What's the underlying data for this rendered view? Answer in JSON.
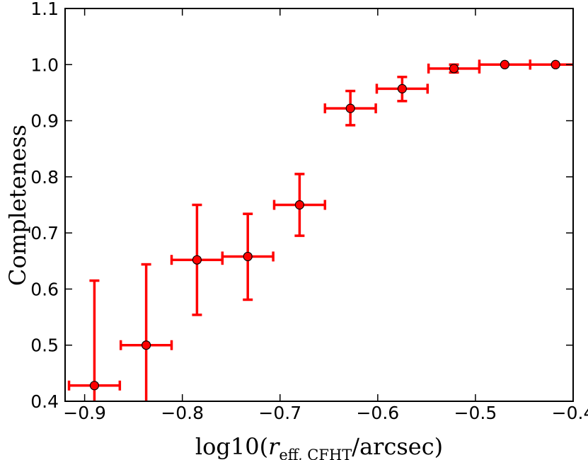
{
  "chart_data": {
    "type": "scatter",
    "title": "",
    "xlabel_prefix": "log10(",
    "xlabel_var": "r",
    "xlabel_subscript": "eff, CFHT",
    "xlabel_suffix": "/arcsec)",
    "ylabel": "Completeness",
    "xlim": [
      -0.92,
      -0.4
    ],
    "ylim": [
      0.4,
      1.1
    ],
    "xticks": [
      -0.9,
      -0.8,
      -0.7,
      -0.6,
      -0.5,
      -0.4
    ],
    "xtick_labels": [
      "−0.9",
      "−0.8",
      "−0.7",
      "−0.6",
      "−0.5",
      "−0.4"
    ],
    "yticks": [
      0.4,
      0.5,
      0.6,
      0.7,
      0.8,
      0.9,
      1.0,
      1.1
    ],
    "ytick_labels": [
      "0.4",
      "0.5",
      "0.6",
      "0.7",
      "0.8",
      "0.9",
      "1.0",
      "1.1"
    ],
    "grid": false,
    "legend": "none",
    "color": "#ff0000",
    "series": [
      {
        "name": "completeness",
        "points": [
          {
            "x": -0.89,
            "y": 0.428,
            "xerr": 0.026,
            "yerr_low": 0.05,
            "yerr_high": 0.187
          },
          {
            "x": -0.837,
            "y": 0.5,
            "xerr": 0.026,
            "yerr_low": 0.11,
            "yerr_high": 0.144
          },
          {
            "x": -0.785,
            "y": 0.652,
            "xerr": 0.026,
            "yerr_low": 0.098,
            "yerr_high": 0.098
          },
          {
            "x": -0.733,
            "y": 0.658,
            "xerr": 0.026,
            "yerr_low": 0.077,
            "yerr_high": 0.076
          },
          {
            "x": -0.68,
            "y": 0.75,
            "xerr": 0.026,
            "yerr_low": 0.055,
            "yerr_high": 0.055
          },
          {
            "x": -0.628,
            "y": 0.922,
            "xerr": 0.026,
            "yerr_low": 0.03,
            "yerr_high": 0.031
          },
          {
            "x": -0.575,
            "y": 0.957,
            "xerr": 0.026,
            "yerr_low": 0.022,
            "yerr_high": 0.021
          },
          {
            "x": -0.522,
            "y": 0.993,
            "xerr": 0.026,
            "yerr_low": 0.007,
            "yerr_high": 0.007
          },
          {
            "x": -0.47,
            "y": 1.0,
            "xerr": 0.026,
            "yerr_low": 0.0,
            "yerr_high": 0.0
          },
          {
            "x": -0.418,
            "y": 1.0,
            "xerr": 0.026,
            "yerr_low": 0.0,
            "yerr_high": 0.0
          }
        ]
      }
    ]
  }
}
